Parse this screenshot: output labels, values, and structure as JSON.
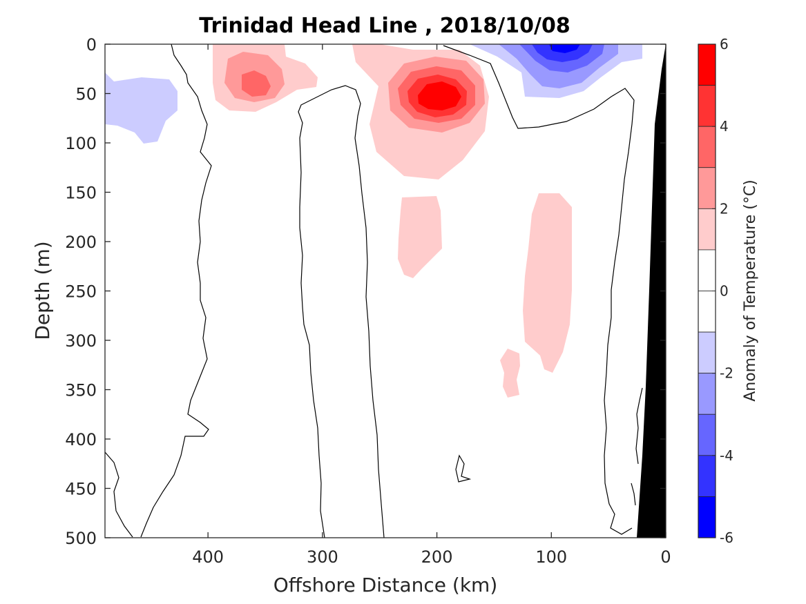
{
  "chart_data": {
    "type": "heatmap",
    "subtype": "filled-contour section",
    "title": "Trinidad Head Line , 2018/10/08",
    "xlabel": "Offshore Distance (km)",
    "ylabel": "Depth (m)",
    "x_axis": {
      "range": [
        490,
        0
      ],
      "reversed": true,
      "ticks": [
        "400",
        "300",
        "200",
        "100",
        "0"
      ],
      "tick_values": [
        400,
        300,
        200,
        100,
        0
      ]
    },
    "y_axis": {
      "range": [
        0,
        500
      ],
      "reversed": true,
      "ticks": [
        "0",
        "50",
        "100",
        "150",
        "200",
        "250",
        "300",
        "350",
        "400",
        "450",
        "500"
      ],
      "tick_values": [
        0,
        50,
        100,
        150,
        200,
        250,
        300,
        350,
        400,
        450,
        500
      ]
    },
    "colorbar": {
      "label": "Anomaly of Temperature (°C)",
      "range": [
        -6,
        6
      ],
      "step": 1,
      "ticks": [
        "6",
        "4",
        "2",
        "0",
        "-2",
        "-4",
        "-6"
      ],
      "tick_values": [
        6,
        4,
        2,
        0,
        -2,
        -4,
        -6
      ],
      "levels": [
        {
          "from": 5,
          "to": 6,
          "color": "#ff0000"
        },
        {
          "from": 4,
          "to": 5,
          "color": "#ff3333"
        },
        {
          "from": 3,
          "to": 4,
          "color": "#ff6666"
        },
        {
          "from": 2,
          "to": 3,
          "color": "#ff9999"
        },
        {
          "from": 1,
          "to": 2,
          "color": "#ffcccc"
        },
        {
          "from": 0,
          "to": 1,
          "color": "#ffffff"
        },
        {
          "from": -1,
          "to": 0,
          "color": "#ffffff"
        },
        {
          "from": -2,
          "to": -1,
          "color": "#ccccff"
        },
        {
          "from": -3,
          "to": -2,
          "color": "#9999ff"
        },
        {
          "from": -4,
          "to": -3,
          "color": "#6666ff"
        },
        {
          "from": -5,
          "to": -4,
          "color": "#3333ff"
        },
        {
          "from": -6,
          "to": -5,
          "color": "#0000ff"
        }
      ]
    },
    "anomaly_features": [
      {
        "sign": "warm",
        "peak_anomaly": 3,
        "center_km": 360,
        "center_depth_m": 40
      },
      {
        "sign": "warm",
        "peak_anomaly": 6,
        "center_km": 200,
        "center_depth_m": 50
      },
      {
        "sign": "warm",
        "peak_anomaly": 1,
        "center_km": 205,
        "center_depth_m": 200
      },
      {
        "sign": "warm",
        "peak_anomaly": 1,
        "center_km": 100,
        "center_depth_m": 250
      },
      {
        "sign": "warm",
        "peak_anomaly": 1,
        "center_km": 137,
        "center_depth_m": 330
      },
      {
        "sign": "cold",
        "peak_anomaly": -1,
        "center_km": 468,
        "center_depth_m": 55
      },
      {
        "sign": "cold",
        "peak_anomaly": -5,
        "center_km": 88,
        "center_depth_m": 5
      }
    ],
    "bathymetry": {
      "color": "#000000",
      "description_points_km_depth": [
        [
          0,
          0
        ],
        [
          25,
          500
        ]
      ]
    }
  }
}
